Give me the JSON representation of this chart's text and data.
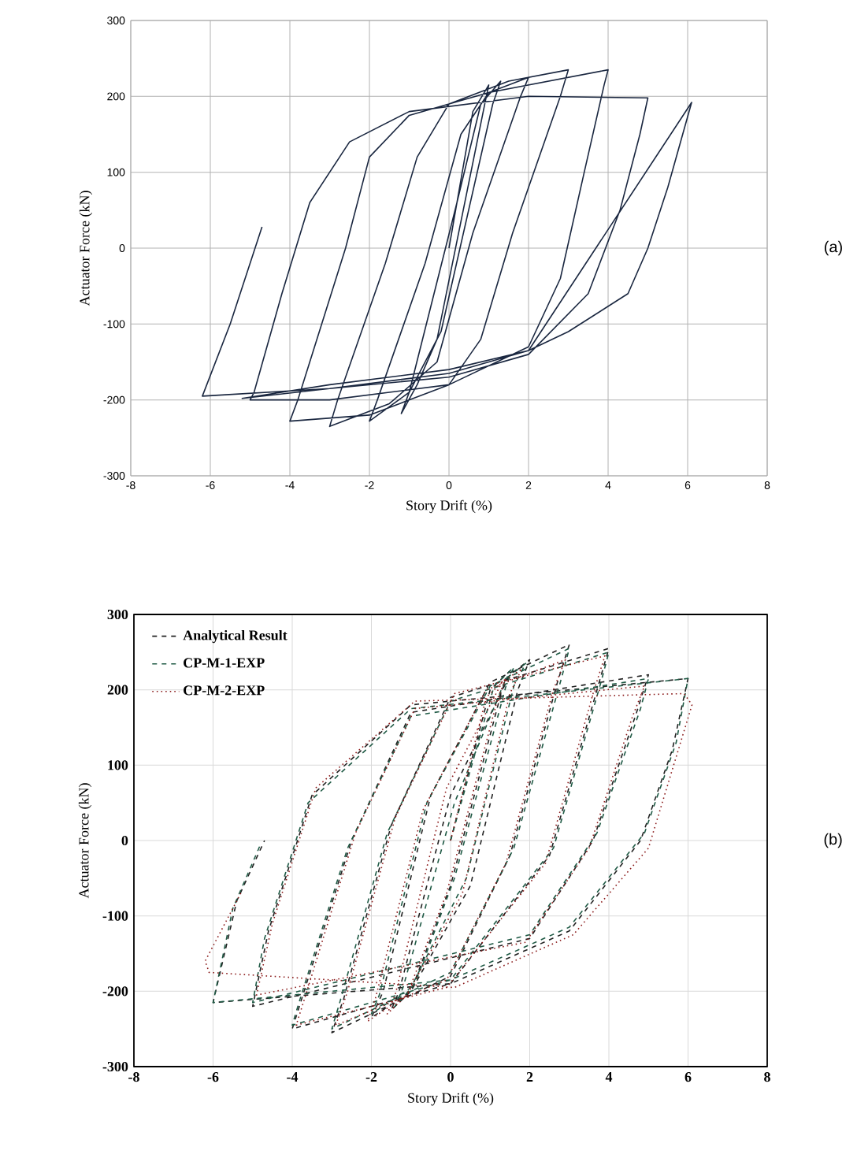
{
  "chart_data": [
    {
      "type": "line",
      "xlabel": "Story Drift (%)",
      "ylabel": "Actuator Force (kN)",
      "annotations": [
        "(a)"
      ],
      "xlim": [
        -8,
        8
      ],
      "ylim": [
        -300,
        300
      ],
      "xticks": [
        -8,
        -6,
        -4,
        -2,
        0,
        2,
        4,
        6,
        8
      ],
      "yticks": [
        -300,
        -200,
        -100,
        0,
        100,
        200,
        300
      ],
      "grid": true,
      "legend": false,
      "line_style": "solid",
      "series": [
        {
          "color": "#1a2740",
          "x": [
            0,
            0.6,
            1.0,
            0.9,
            -0.3,
            -0.8,
            -1.2,
            -1.0,
            0.2,
            0.8,
            1.3,
            1.1,
            -0.2,
            -1.0,
            -2.0,
            -1.8,
            -0.6,
            0.3,
            1.0,
            2.0,
            1.8,
            0.6,
            -0.3,
            -1.5,
            -3.0,
            -2.8,
            -1.6,
            -0.8,
            0,
            1.5,
            3.0,
            2.8,
            1.6,
            0.8,
            0,
            -2,
            -4,
            -3.8,
            -2.6,
            -2,
            -1,
            1,
            4,
            3.9,
            3.4,
            2.8,
            2,
            0,
            -3,
            -5,
            -4.9,
            -4.2,
            -3.5,
            -2.5,
            -1,
            2,
            5,
            4.8,
            4.3,
            3.5,
            2,
            0,
            -3,
            -5.2,
            -3,
            0,
            2,
            6.1,
            5.5,
            5,
            4.5,
            3,
            2,
            0,
            -3,
            -6.2,
            -5.5,
            -4.7
          ],
          "values": [
            0,
            180,
            215,
            190,
            -120,
            -180,
            -218,
            -190,
            60,
            190,
            220,
            190,
            -110,
            -190,
            -228,
            -200,
            -20,
            150,
            205,
            225,
            200,
            20,
            -150,
            -205,
            -235,
            -200,
            -20,
            120,
            190,
            220,
            235,
            200,
            20,
            -120,
            -180,
            -220,
            -228,
            -200,
            0,
            120,
            175,
            205,
            235,
            215,
            100,
            -40,
            -130,
            -180,
            -200,
            -200,
            -190,
            -60,
            60,
            140,
            180,
            200,
            198,
            150,
            50,
            -60,
            -140,
            -170,
            -185,
            -198,
            -180,
            -160,
            -135,
            192,
            80,
            0,
            -60,
            -110,
            -135,
            -165,
            -185,
            -195,
            -100,
            28
          ]
        }
      ]
    },
    {
      "type": "line",
      "xlabel": "Story Drift (%)",
      "ylabel": "Actuator Force (kN)",
      "annotations": [
        "(b)"
      ],
      "xlim": [
        -8,
        8
      ],
      "ylim": [
        -300,
        300
      ],
      "xticks": [
        -8,
        -6,
        -4,
        -2,
        0,
        2,
        4,
        6,
        8
      ],
      "yticks": [
        -300,
        -200,
        -100,
        0,
        100,
        200,
        300
      ],
      "grid": true,
      "legend": "top left",
      "series": [
        {
          "name": "Analytical Result",
          "color": "#222222",
          "line_style": "dashed",
          "x": [
            0,
            1,
            1.5,
            1.3,
            0,
            -1,
            -1.5,
            -1.3,
            0,
            1.5,
            2,
            1.7,
            0.5,
            -1,
            -2,
            -1.7,
            -0.5,
            1,
            3,
            2.7,
            1.5,
            0,
            -3,
            -2.7,
            -1.5,
            0,
            4,
            3.7,
            2.5,
            0,
            -4,
            -3.7,
            -2.5,
            -1,
            5,
            4.7,
            3.6,
            2,
            -5,
            -4.6,
            -3.5,
            -1,
            6,
            5.6,
            4.8,
            3,
            0,
            -6,
            -5.4,
            -4.7
          ],
          "values": [
            0,
            200,
            225,
            200,
            -60,
            -200,
            -225,
            -200,
            60,
            220,
            240,
            200,
            -60,
            -200,
            -235,
            -200,
            60,
            210,
            260,
            210,
            -20,
            -180,
            -255,
            -210,
            20,
            190,
            255,
            200,
            -20,
            -190,
            -250,
            -200,
            0,
            170,
            220,
            170,
            0,
            -130,
            -220,
            -120,
            60,
            180,
            215,
            120,
            0,
            -120,
            -190,
            -215,
            -80,
            0
          ]
        },
        {
          "name": "CP-M-1-EXP",
          "color": "#1f5a45",
          "line_style": "dashed",
          "x": [
            0,
            1.1,
            1.6,
            1.4,
            0.1,
            -0.9,
            -1.4,
            -1.2,
            0.1,
            1.4,
            1.9,
            1.6,
            0.4,
            -1,
            -2,
            -1.8,
            -0.6,
            1,
            3,
            2.8,
            1.6,
            0,
            -3,
            -2.8,
            -1.6,
            0,
            4,
            3.8,
            2.6,
            0,
            -4,
            -3.8,
            -2.6,
            -1,
            5,
            4.8,
            3.7,
            2,
            -5,
            -4.7,
            -3.6,
            -1,
            6,
            5.7,
            4.9,
            3,
            0,
            -6,
            -5.5,
            -4.8
          ],
          "values": [
            0,
            205,
            230,
            205,
            -50,
            -190,
            -220,
            -195,
            50,
            215,
            235,
            205,
            -50,
            -195,
            -230,
            -205,
            50,
            205,
            255,
            215,
            -10,
            -175,
            -250,
            -215,
            10,
            185,
            250,
            210,
            -10,
            -185,
            -245,
            -210,
            -10,
            165,
            215,
            175,
            10,
            -125,
            -215,
            -130,
            50,
            175,
            215,
            130,
            10,
            -115,
            -185,
            -215,
            -90,
            -5
          ]
        },
        {
          "name": "CP-M-2-EXP",
          "color": "#8b1a1a",
          "line_style": "dotted",
          "x": [
            0,
            0.9,
            1.4,
            1.2,
            -0.1,
            -1.1,
            -1.6,
            -1.4,
            -0.1,
            1.3,
            1.8,
            1.5,
            0.3,
            -1.1,
            -2.1,
            -1.9,
            -0.7,
            0.9,
            2.9,
            2.6,
            1.4,
            -0.1,
            -2.9,
            -2.6,
            -1.4,
            0.1,
            3.9,
            3.6,
            2.4,
            -0.1,
            -3.9,
            -3.6,
            -2.4,
            -0.9,
            4.9,
            4.6,
            3.5,
            1.9,
            -4.9,
            -4.5,
            -3.4,
            -0.9,
            5.9,
            6.1,
            5,
            3.1,
            0.1,
            -6.1,
            -6.2,
            -5.3
          ],
          "values": [
            0,
            190,
            215,
            190,
            -70,
            -205,
            -230,
            -205,
            70,
            210,
            228,
            195,
            -70,
            -205,
            -240,
            -210,
            40,
            200,
            240,
            200,
            -30,
            -185,
            -245,
            -200,
            30,
            195,
            245,
            195,
            -30,
            -195,
            -245,
            -195,
            10,
            175,
            205,
            165,
            -10,
            -135,
            -205,
            -110,
            70,
            185,
            195,
            180,
            -10,
            -125,
            -195,
            -175,
            -160,
            -70
          ]
        }
      ]
    }
  ]
}
